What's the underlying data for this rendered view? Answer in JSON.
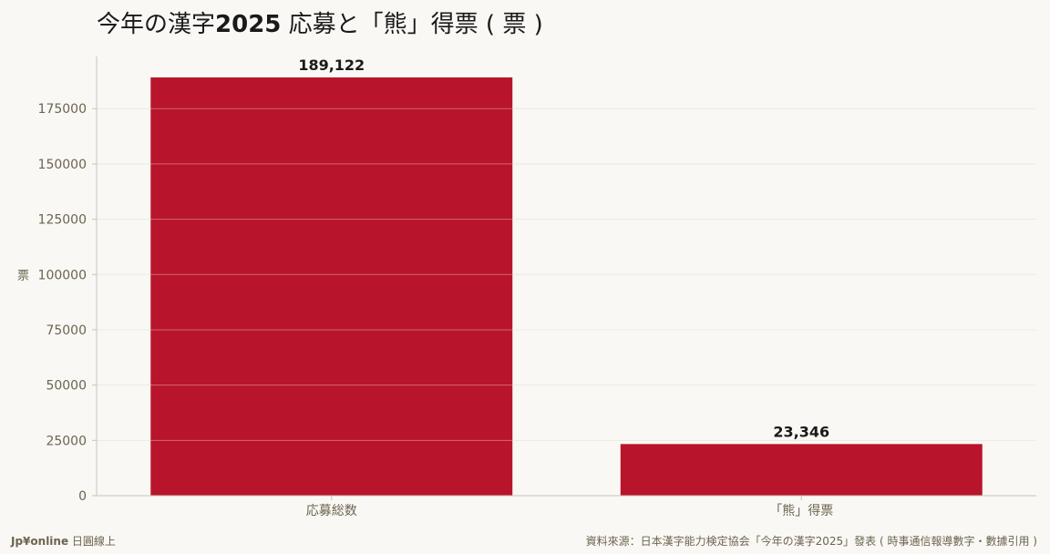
{
  "title": {
    "prefix": "今年の漢字",
    "year": "2025",
    "suffix": " 応募と「熊」得票 ( 票 )"
  },
  "footer": {
    "brand": "Jp¥online",
    "brand_suffix": " 日圓線上",
    "source": "資料來源：日本漢字能力検定協会「今年の漢字2025」發表 ( 時事通信報導數字・數據引用 )"
  },
  "colors": {
    "bar": "#b8142c",
    "grid": "#e4e0d8",
    "axis": "#c8c4bc",
    "tick_text": "#6b6450",
    "label_text": "#1a1a1a",
    "background": "#faf8f4"
  },
  "chart_data": {
    "type": "bar",
    "title": "今年の漢字2025 応募と「熊」得票 ( 票 )",
    "xlabel": "",
    "ylabel": "票",
    "categories": [
      "応募総数",
      "「熊」得票"
    ],
    "values": [
      189122,
      23346
    ],
    "data_labels": [
      "189,122",
      "23,346"
    ],
    "yticks": [
      0,
      25000,
      50000,
      75000,
      100000,
      125000,
      150000,
      175000
    ],
    "ylim": [
      0,
      198578
    ],
    "grid": true,
    "legend": "none"
  }
}
